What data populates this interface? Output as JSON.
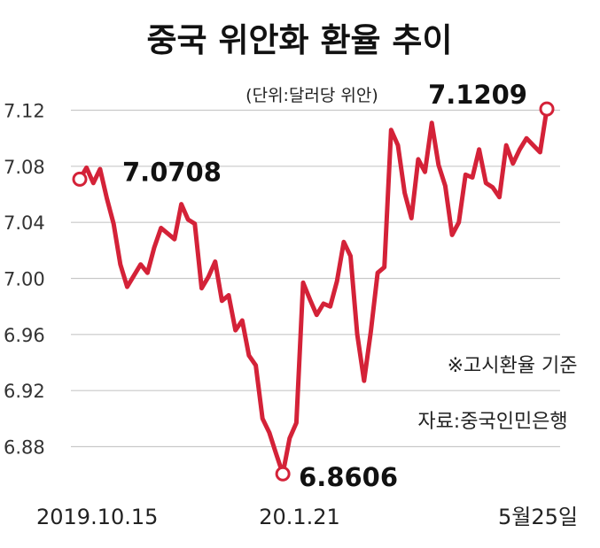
{
  "chart_data": {
    "type": "line",
    "title": "중국 위안화 환율 추이",
    "unit_note": "(단위:달러당 위안)",
    "ylim": [
      6.86,
      7.13
    ],
    "y_ticks": [
      "7.12",
      "7.08",
      "7.04",
      "7.00",
      "6.96",
      "6.92",
      "6.88"
    ],
    "x_tick_labels": [
      "2019.10.15",
      "20.1.21",
      "5월25일"
    ],
    "grid": true,
    "series": [
      {
        "values": [
          7.0708,
          7.079,
          7.068,
          7.078,
          7.057,
          7.039,
          7.01,
          6.994,
          7.002,
          7.01,
          7.004,
          7.022,
          7.036,
          7.032,
          7.028,
          7.053,
          7.042,
          7.039,
          6.993,
          7.001,
          7.012,
          6.984,
          6.988,
          6.963,
          6.97,
          6.945,
          6.938,
          6.9,
          6.89,
          6.875,
          6.8606,
          6.886,
          6.897,
          6.997,
          6.985,
          6.974,
          6.982,
          6.98,
          6.998,
          7.026,
          7.016,
          6.96,
          6.927,
          6.962,
          7.004,
          7.008,
          7.106,
          7.095,
          7.061,
          7.043,
          7.085,
          7.076,
          7.111,
          7.081,
          7.066,
          7.031,
          7.04,
          7.074,
          7.072,
          7.092,
          7.068,
          7.065,
          7.058,
          7.095,
          7.082,
          7.092,
          7.1,
          7.095,
          7.09,
          7.1209
        ]
      }
    ],
    "annotations": [
      {
        "label": "7.0708",
        "index": 0
      },
      {
        "label": "6.8606",
        "index": 30
      },
      {
        "label": "7.1209",
        "index": 69
      }
    ],
    "notes": [
      "※고시환율 기준",
      "자료:중국인민은행"
    ],
    "colors": {
      "line": "#d42238",
      "marker_fill": "#ffffff",
      "grid": "#c9c9c9"
    }
  }
}
